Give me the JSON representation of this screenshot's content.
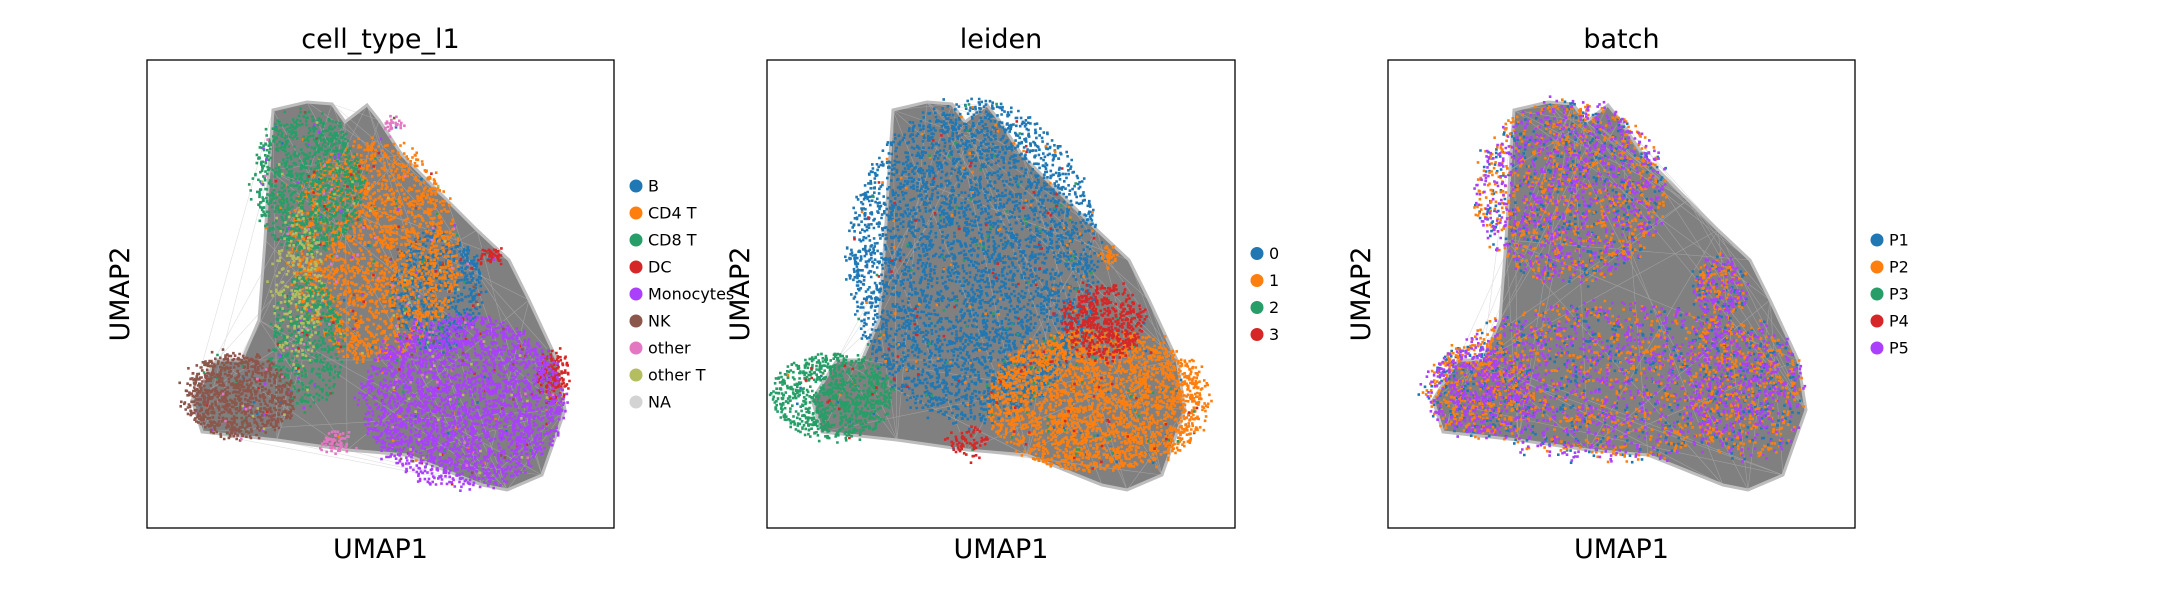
{
  "figure": {
    "background": "#ffffff",
    "embedding_gray": "#808080",
    "edge_color": "#bdbdbd"
  },
  "chart_data": [
    {
      "type": "scatter",
      "title": "cell_type_l1",
      "xlabel": "UMAP1",
      "ylabel": "UMAP2",
      "grid": false,
      "ticks": false,
      "legend_position": "right",
      "series": [
        {
          "name": "B",
          "color": "#1f77b4"
        },
        {
          "name": "CD4 T",
          "color": "#ff7f0e"
        },
        {
          "name": "CD8 T",
          "color": "#279e68"
        },
        {
          "name": "DC",
          "color": "#d62728"
        },
        {
          "name": "Monocytes",
          "color": "#aa40fc"
        },
        {
          "name": "NK",
          "color": "#8c564b"
        },
        {
          "name": "other",
          "color": "#e377c2"
        },
        {
          "name": "other T",
          "color": "#b5bd61"
        },
        {
          "name": "NA",
          "color": "#d3d3d3"
        }
      ]
    },
    {
      "type": "scatter",
      "title": "leiden",
      "xlabel": "UMAP1",
      "ylabel": "UMAP2",
      "grid": false,
      "ticks": false,
      "legend_position": "right",
      "series": [
        {
          "name": "0",
          "color": "#1f77b4"
        },
        {
          "name": "1",
          "color": "#ff7f0e"
        },
        {
          "name": "2",
          "color": "#279e68"
        },
        {
          "name": "3",
          "color": "#d62728"
        }
      ]
    },
    {
      "type": "scatter",
      "title": "batch",
      "xlabel": "UMAP1",
      "ylabel": "UMAP2",
      "grid": false,
      "ticks": false,
      "legend_position": "right",
      "series": [
        {
          "name": "P1",
          "color": "#1f77b4"
        },
        {
          "name": "P2",
          "color": "#ff7f0e"
        },
        {
          "name": "P3",
          "color": "#279e68"
        },
        {
          "name": "P4",
          "color": "#d62728"
        },
        {
          "name": "P5",
          "color": "#aa40fc"
        }
      ]
    }
  ]
}
